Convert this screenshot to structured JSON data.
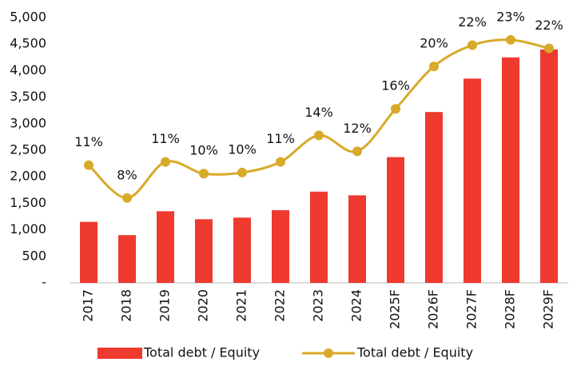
{
  "chart_data": {
    "type": "bar_line",
    "categories": [
      "2017",
      "2018",
      "2019",
      "2020",
      "2021",
      "2022",
      "2023",
      "2024",
      "2025F",
      "2026F",
      "2027F",
      "2028F",
      "2029F"
    ],
    "series": [
      {
        "name": "Total debt / Equity",
        "type": "bar",
        "color": "#ee3a2f",
        "values": [
          1150,
          900,
          1350,
          1200,
          1230,
          1370,
          1720,
          1650,
          2370,
          3220,
          3850,
          4250,
          4400
        ]
      },
      {
        "name": "Total debt / Equity",
        "type": "line",
        "axis": "y2",
        "color": "#d8aa2a",
        "values": [
          11.1,
          8,
          11.4,
          10.3,
          10.4,
          11.4,
          13.9,
          12.4,
          16.4,
          20.4,
          22.4,
          22.9,
          22.1
        ],
        "value_labels": [
          "11%",
          "8%",
          "11%",
          "10%",
          "10%",
          "11%",
          "14%",
          "12%",
          "16%",
          "20%",
          "22%",
          "23%",
          "22%"
        ]
      }
    ],
    "ylim": [
      0,
      5000
    ],
    "yticks": [
      {
        "value": 0,
        "label": "-"
      },
      500,
      {
        "value": 1000,
        "label": "1,000"
      },
      {
        "value": 1500,
        "label": "1,500"
      },
      {
        "value": 2000,
        "label": "2,000"
      },
      {
        "value": 2500,
        "label": "2,500"
      },
      {
        "value": 3000,
        "label": "3,000"
      },
      {
        "value": 3500,
        "label": "3,500"
      },
      {
        "value": 4000,
        "label": "4,000"
      },
      {
        "value": 4500,
        "label": "4,500"
      },
      {
        "value": 5000,
        "label": "5,000"
      }
    ],
    "y2lim": [
      0,
      25
    ],
    "legend": "bottom"
  }
}
